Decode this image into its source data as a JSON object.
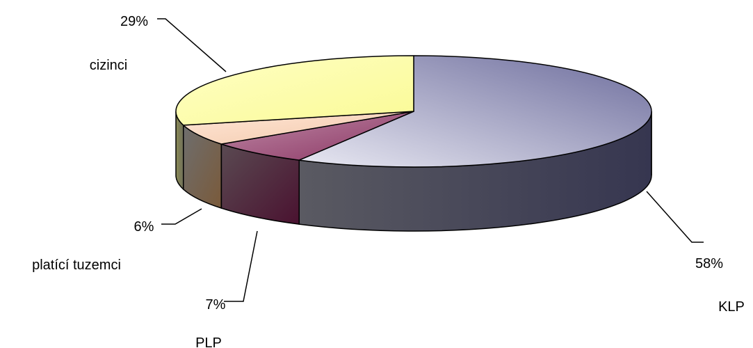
{
  "chart_data": {
    "type": "pie",
    "three_d": true,
    "title": "",
    "legend": "none",
    "slices": [
      {
        "name": "KLP",
        "value": 58,
        "percent_label": "58%",
        "color": "#8f8fbf"
      },
      {
        "name": "PLP",
        "value": 7,
        "percent_label": "7%",
        "color": "#a2537a"
      },
      {
        "name": "platící tuzemci",
        "value": 6,
        "percent_label": "6%",
        "color": "#f4cfb3"
      },
      {
        "name": "cizinci",
        "value": 29,
        "percent_label": "29%",
        "color": "#ffffa6"
      }
    ]
  }
}
